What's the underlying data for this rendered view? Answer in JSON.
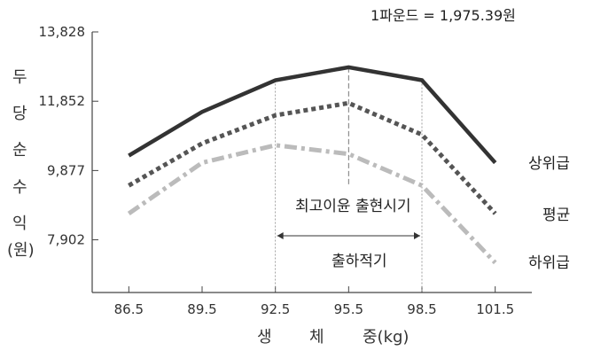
{
  "chart_data": {
    "type": "line",
    "note": "1파운드 = 1,975.39원",
    "ylabel_chars": [
      "두",
      "당",
      "순",
      "수",
      "익",
      "(원)"
    ],
    "xlabel_chars": [
      "생",
      "체",
      "중(kg)"
    ],
    "x": [
      86.5,
      89.5,
      92.5,
      95.5,
      98.5,
      101.5
    ],
    "x_tick_labels": [
      "86.5",
      "89.5",
      "92.5",
      "95.5",
      "98.5",
      "101.5"
    ],
    "y_ticks": [
      7902,
      9877,
      11852,
      13828
    ],
    "y_tick_labels": [
      "7,902",
      "9,877",
      "11,852",
      "13,828"
    ],
    "ylim": [
      6400,
      13828
    ],
    "xlim": [
      85,
      103
    ],
    "series": [
      {
        "name": "상위급",
        "values": [
          10300,
          11550,
          12450,
          12820,
          12450,
          10100
        ],
        "style": "solid",
        "color": "#333333"
      },
      {
        "name": "평균",
        "values": [
          9450,
          10650,
          11450,
          11800,
          10900,
          8650
        ],
        "style": "dotted",
        "color": "#555555"
      },
      {
        "name": "하위급",
        "values": [
          8650,
          10100,
          10600,
          10350,
          9450,
          7250
        ],
        "style": "dashdot",
        "color": "#bbbbbb"
      }
    ],
    "annotations": {
      "peak_label": "최고이윤 출현시기",
      "optimal_label": "출하적기",
      "optimal_range": [
        92.5,
        98.5
      ],
      "peak_x": 95.5
    },
    "grid": false
  }
}
